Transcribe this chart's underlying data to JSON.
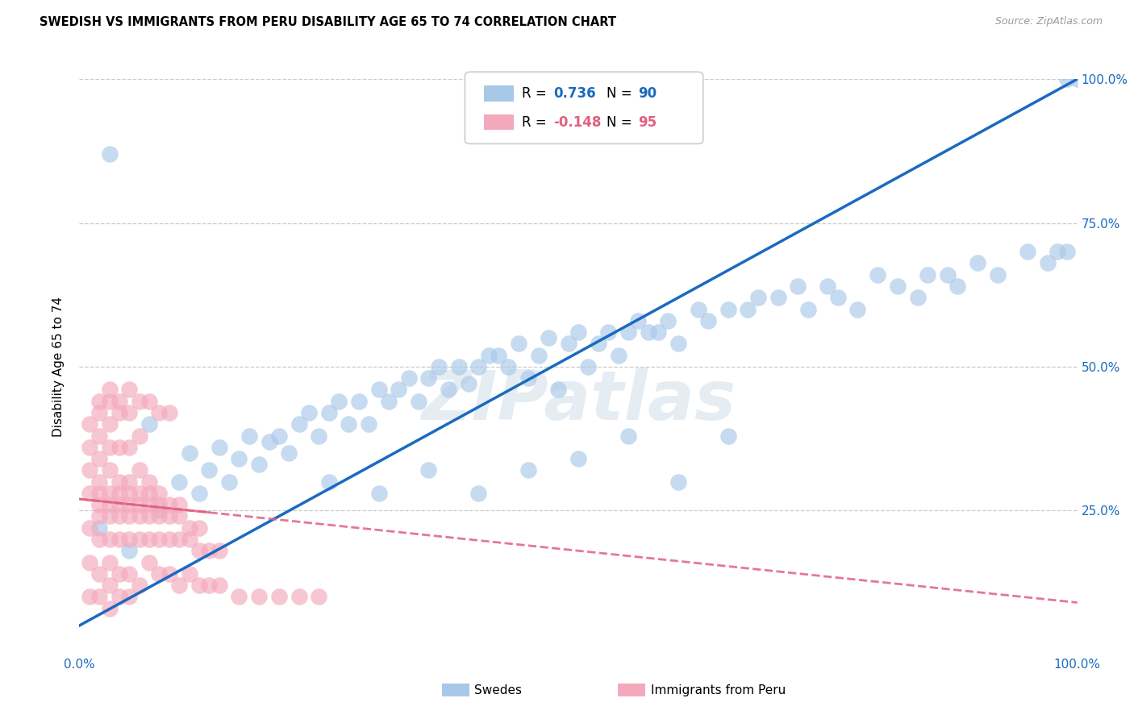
{
  "title": "SWEDISH VS IMMIGRANTS FROM PERU DISABILITY AGE 65 TO 74 CORRELATION CHART",
  "source": "Source: ZipAtlas.com",
  "ylabel": "Disability Age 65 to 74",
  "xlim": [
    0,
    100
  ],
  "ylim": [
    0,
    100
  ],
  "blue_R": "0.736",
  "blue_N": "90",
  "pink_R": "-0.148",
  "pink_N": "95",
  "blue_fill": "#a8c8e8",
  "pink_fill": "#f4a8bc",
  "blue_line": "#1a6abf",
  "pink_line": "#e06080",
  "watermark": "ZIPatlas",
  "label_blue": "Swedes",
  "label_pink": "Immigrants from Peru",
  "blue_x": [
    3,
    5,
    7,
    8,
    10,
    11,
    12,
    13,
    14,
    15,
    16,
    17,
    18,
    19,
    20,
    21,
    22,
    23,
    24,
    25,
    26,
    27,
    28,
    29,
    30,
    31,
    32,
    33,
    34,
    35,
    36,
    37,
    38,
    39,
    40,
    41,
    42,
    43,
    44,
    45,
    46,
    47,
    48,
    49,
    50,
    51,
    52,
    53,
    54,
    55,
    56,
    57,
    58,
    59,
    60,
    62,
    63,
    65,
    67,
    68,
    70,
    72,
    73,
    75,
    76,
    78,
    80,
    82,
    84,
    85,
    87,
    88,
    90,
    92,
    95,
    97,
    98,
    99,
    100,
    2,
    25,
    30,
    35,
    40,
    45,
    50,
    55,
    60,
    65,
    99
  ],
  "blue_y": [
    87,
    18,
    40,
    25,
    30,
    35,
    28,
    32,
    36,
    30,
    34,
    38,
    33,
    37,
    38,
    35,
    40,
    42,
    38,
    42,
    44,
    40,
    44,
    40,
    46,
    44,
    46,
    48,
    44,
    48,
    50,
    46,
    50,
    47,
    50,
    52,
    52,
    50,
    54,
    48,
    52,
    55,
    46,
    54,
    56,
    50,
    54,
    56,
    52,
    56,
    58,
    56,
    56,
    58,
    54,
    60,
    58,
    60,
    60,
    62,
    62,
    64,
    60,
    64,
    62,
    60,
    66,
    64,
    62,
    66,
    66,
    64,
    68,
    66,
    70,
    68,
    70,
    70,
    100,
    22,
    30,
    28,
    32,
    28,
    32,
    34,
    38,
    30,
    38,
    100
  ],
  "pink_x": [
    1,
    1,
    1,
    1,
    1,
    2,
    2,
    2,
    2,
    2,
    2,
    2,
    2,
    3,
    3,
    3,
    3,
    3,
    3,
    3,
    3,
    4,
    4,
    4,
    4,
    4,
    4,
    4,
    5,
    5,
    5,
    5,
    5,
    5,
    5,
    6,
    6,
    6,
    6,
    6,
    6,
    7,
    7,
    7,
    7,
    7,
    8,
    8,
    8,
    8,
    9,
    9,
    9,
    10,
    10,
    10,
    11,
    11,
    12,
    12,
    13,
    14,
    1,
    1,
    2,
    2,
    3,
    3,
    3,
    4,
    4,
    5,
    5,
    6,
    7,
    8,
    9,
    10,
    11,
    12,
    13,
    14,
    16,
    18,
    20,
    22,
    24,
    2,
    3,
    4,
    5,
    6,
    7,
    8,
    9
  ],
  "pink_y": [
    22,
    28,
    32,
    36,
    40,
    20,
    24,
    26,
    28,
    30,
    34,
    38,
    42,
    20,
    24,
    26,
    28,
    32,
    36,
    40,
    44,
    20,
    24,
    26,
    28,
    30,
    36,
    42,
    20,
    24,
    26,
    28,
    30,
    36,
    42,
    20,
    24,
    26,
    28,
    32,
    38,
    20,
    24,
    26,
    28,
    30,
    20,
    24,
    26,
    28,
    20,
    24,
    26,
    20,
    24,
    26,
    20,
    22,
    18,
    22,
    18,
    18,
    16,
    10,
    14,
    10,
    16,
    12,
    8,
    14,
    10,
    14,
    10,
    12,
    16,
    14,
    14,
    12,
    14,
    12,
    12,
    12,
    10,
    10,
    10,
    10,
    10,
    44,
    46,
    44,
    46,
    44,
    44,
    42,
    42
  ]
}
